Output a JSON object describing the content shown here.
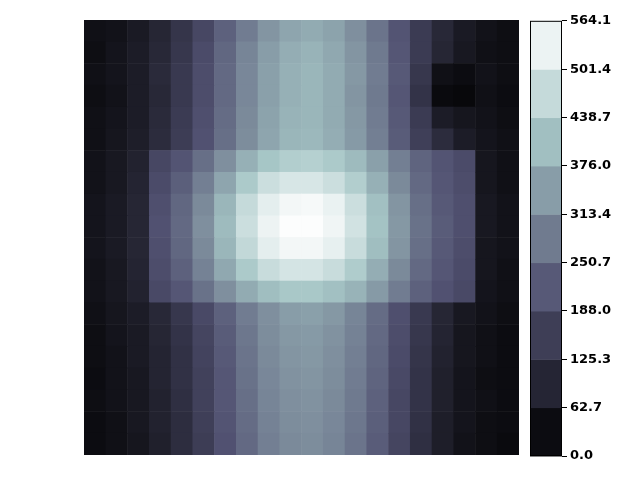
{
  "chart_data": {
    "type": "heatmap",
    "color": "bone",
    "tick_labels": false,
    "cells": [
      [
        40,
        45,
        65,
        95,
        135,
        180,
        235,
        285,
        330,
        360,
        370,
        355,
        320,
        270,
        210,
        150,
        100,
        65,
        45,
        35
      ],
      [
        35,
        50,
        70,
        100,
        140,
        190,
        245,
        300,
        345,
        375,
        385,
        365,
        330,
        280,
        215,
        150,
        95,
        60,
        40,
        35
      ],
      [
        40,
        50,
        70,
        105,
        145,
        195,
        250,
        305,
        350,
        380,
        390,
        370,
        335,
        285,
        220,
        140,
        40,
        30,
        45,
        35
      ],
      [
        35,
        45,
        70,
        100,
        145,
        195,
        250,
        305,
        350,
        380,
        390,
        370,
        330,
        280,
        215,
        130,
        25,
        20,
        40,
        30
      ],
      [
        40,
        50,
        70,
        105,
        150,
        200,
        255,
        310,
        355,
        385,
        390,
        370,
        335,
        285,
        220,
        150,
        70,
        55,
        45,
        35
      ],
      [
        40,
        55,
        75,
        110,
        155,
        205,
        260,
        315,
        360,
        390,
        395,
        375,
        340,
        290,
        225,
        160,
        110,
        70,
        50,
        40
      ],
      [
        45,
        60,
        85,
        180,
        210,
        260,
        320,
        380,
        420,
        440,
        445,
        430,
        400,
        350,
        290,
        240,
        210,
        190,
        55,
        40
      ],
      [
        45,
        60,
        90,
        190,
        230,
        290,
        360,
        430,
        480,
        500,
        500,
        480,
        440,
        380,
        310,
        250,
        215,
        195,
        55,
        40
      ],
      [
        50,
        65,
        95,
        200,
        245,
        310,
        390,
        470,
        520,
        545,
        550,
        530,
        480,
        410,
        330,
        260,
        220,
        200,
        60,
        45
      ],
      [
        50,
        65,
        95,
        205,
        250,
        320,
        400,
        480,
        535,
        560,
        560,
        540,
        490,
        415,
        335,
        265,
        225,
        200,
        60,
        45
      ],
      [
        50,
        65,
        95,
        200,
        245,
        310,
        390,
        465,
        520,
        545,
        545,
        525,
        475,
        405,
        330,
        260,
        220,
        195,
        55,
        45
      ],
      [
        45,
        60,
        90,
        195,
        235,
        295,
        365,
        430,
        475,
        495,
        495,
        475,
        435,
        375,
        310,
        250,
        215,
        190,
        55,
        40
      ],
      [
        45,
        60,
        85,
        185,
        215,
        265,
        320,
        370,
        405,
        425,
        425,
        410,
        385,
        340,
        285,
        235,
        205,
        185,
        50,
        40
      ],
      [
        40,
        55,
        70,
        100,
        140,
        185,
        235,
        285,
        320,
        345,
        350,
        335,
        300,
        255,
        200,
        145,
        95,
        60,
        45,
        35
      ],
      [
        35,
        50,
        65,
        95,
        130,
        175,
        225,
        275,
        315,
        335,
        340,
        325,
        295,
        250,
        195,
        140,
        90,
        55,
        40,
        30
      ],
      [
        35,
        45,
        65,
        90,
        125,
        170,
        220,
        270,
        310,
        330,
        335,
        320,
        290,
        245,
        190,
        135,
        85,
        55,
        40,
        30
      ],
      [
        30,
        45,
        60,
        90,
        125,
        165,
        215,
        265,
        305,
        325,
        330,
        315,
        285,
        240,
        185,
        130,
        80,
        50,
        35,
        30
      ],
      [
        35,
        45,
        60,
        85,
        120,
        165,
        215,
        260,
        300,
        320,
        325,
        310,
        280,
        235,
        180,
        130,
        80,
        50,
        40,
        30
      ],
      [
        30,
        40,
        60,
        85,
        115,
        160,
        210,
        255,
        295,
        315,
        320,
        305,
        275,
        230,
        180,
        125,
        75,
        50,
        35,
        30
      ],
      [
        30,
        40,
        55,
        80,
        115,
        155,
        205,
        250,
        290,
        310,
        315,
        300,
        270,
        225,
        175,
        120,
        75,
        45,
        35,
        25
      ]
    ],
    "colorbar": {
      "range": [
        0,
        564.1
      ],
      "ticks": [
        {
          "value": 0,
          "label": "0.0"
        },
        62.7,
        125.3,
        {
          "value": 188,
          "label": "188.0"
        },
        250.7,
        313.4,
        {
          "value": 376,
          "label": "376.0"
        },
        438.7,
        501.4,
        564.1
      ]
    }
  }
}
